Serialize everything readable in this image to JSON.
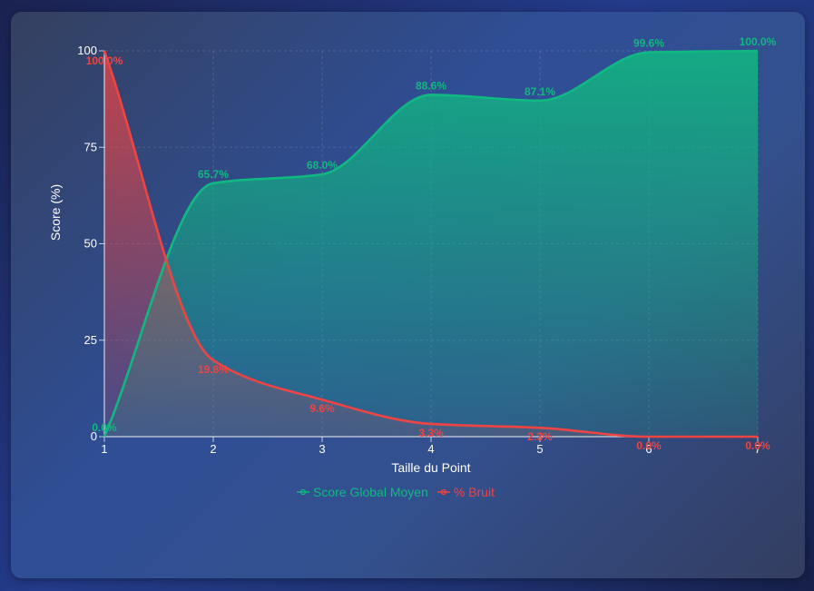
{
  "chart_data": {
    "type": "area",
    "x": [
      1,
      2,
      3,
      4,
      5,
      6,
      7
    ],
    "series": [
      {
        "name": "Score Global Moyen",
        "color": "#10b981",
        "values": [
          0.0,
          65.7,
          68.0,
          88.6,
          87.1,
          99.6,
          100.0
        ],
        "labels": [
          "0.0%",
          "65.7%",
          "68.0%",
          "88.6%",
          "87.1%",
          "99.6%",
          "100.0%"
        ]
      },
      {
        "name": "% Bruit",
        "color": "#ef4444",
        "values": [
          100.0,
          19.8,
          9.6,
          3.3,
          2.3,
          0.0,
          0.0
        ],
        "labels": [
          "100.0%",
          "19.8%",
          "9.6%",
          "3.3%",
          "2.3%",
          "0.0%",
          "0.0%"
        ]
      }
    ],
    "xlabel": "Taille du Point",
    "ylabel": "Score (%)",
    "xlim": [
      1,
      7
    ],
    "ylim": [
      0,
      100
    ],
    "x_ticks": [
      "1",
      "2",
      "3",
      "4",
      "5",
      "6",
      "7"
    ],
    "y_ticks": [
      "0",
      "25",
      "50",
      "75",
      "100"
    ],
    "grid": true,
    "legend_position": "bottom"
  }
}
